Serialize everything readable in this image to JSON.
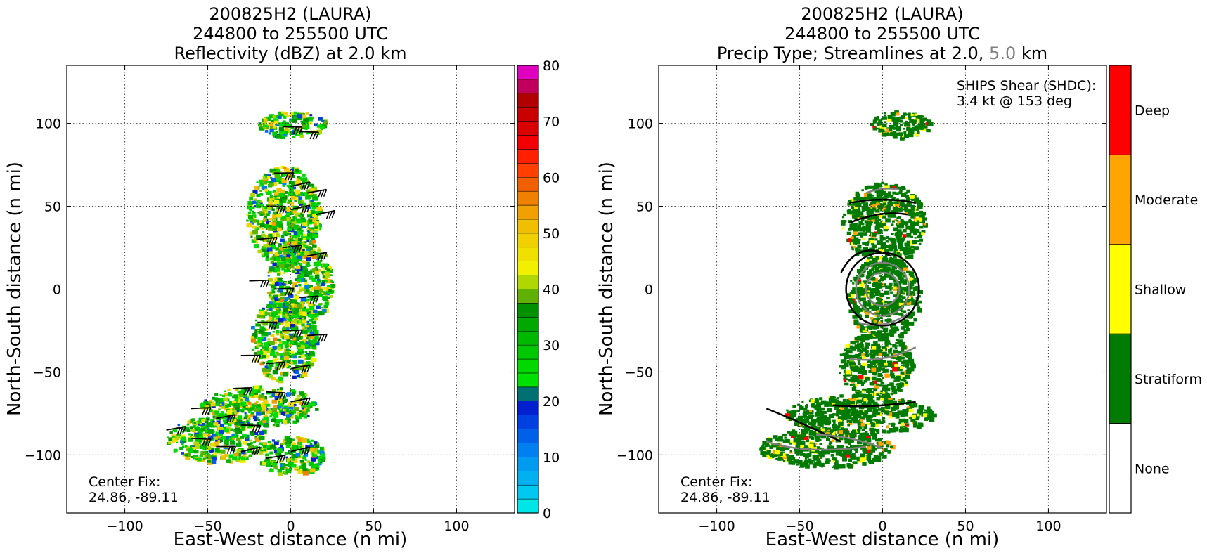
{
  "chart_data": [
    {
      "type": "heatmap",
      "title_lines": [
        "200825H2 (LAURA)",
        "244800 to 255500 UTC",
        "Reflectivity (dBZ) at 2.0 km"
      ],
      "xlabel": "East-West distance (n mi)",
      "ylabel": "North-South distance (n mi)",
      "xlim": [
        -135,
        135
      ],
      "ylim": [
        -135,
        135
      ],
      "xticks": [
        -100,
        -50,
        0,
        50,
        100
      ],
      "yticks": [
        -100,
        -50,
        0,
        50,
        100
      ],
      "tick_labels": [
        "−100",
        "−50",
        "0",
        "50",
        "100"
      ],
      "grid": true,
      "annotation": [
        "Center Fix:",
        "24.86, -89.11"
      ],
      "overlay": "wind barbs",
      "colorbar": {
        "range": [
          0,
          80
        ],
        "step": 2.5,
        "tick_values": [
          0,
          10,
          20,
          30,
          40,
          50,
          60,
          70,
          80
        ],
        "tick_labels": [
          "0",
          "10",
          "20",
          "30",
          "40",
          "50",
          "60",
          "70",
          "80"
        ],
        "colors": [
          "#00e5e5",
          "#00c8f0",
          "#00b0f0",
          "#009af0",
          "#0080f0",
          "#0060e8",
          "#0040e0",
          "#0020d0",
          "#007070",
          "#00e000",
          "#00d800",
          "#00c800",
          "#00b800",
          "#00a800",
          "#009000",
          "#60b000",
          "#b0d800",
          "#f0f000",
          "#f0e000",
          "#f0d000",
          "#f0c000",
          "#f0a000",
          "#f08000",
          "#f06000",
          "#ff4000",
          "#ff2000",
          "#f00000",
          "#d80000",
          "#c80000",
          "#b00000",
          "#c0005a",
          "#e000c0",
          "#f000f0",
          "#d040e8",
          "#a050d0",
          "#7840a0",
          "#402050",
          "#000000"
        ]
      },
      "echo_regions": [
        {
          "x": 0,
          "y": 100,
          "rx": 20,
          "ry": 8
        },
        {
          "x": -5,
          "y": 45,
          "rx": 22,
          "ry": 30
        },
        {
          "x": 5,
          "y": 5,
          "rx": 20,
          "ry": 25
        },
        {
          "x": -5,
          "y": -30,
          "rx": 20,
          "ry": 25
        },
        {
          "x": -20,
          "y": -70,
          "rx": 35,
          "ry": 12
        },
        {
          "x": -45,
          "y": -90,
          "rx": 30,
          "ry": 14
        },
        {
          "x": 0,
          "y": -100,
          "rx": 20,
          "ry": 12
        }
      ]
    },
    {
      "type": "heatmap",
      "title_lines": [
        "200825H2 (LAURA)",
        "244800 to 255500 UTC"
      ],
      "title_line3_parts": [
        "Precip Type; Streamlines at 2.0, ",
        "5.0",
        " km"
      ],
      "xlabel": "East-West distance (n mi)",
      "ylabel": "North-South distance (n mi)",
      "xlim": [
        -135,
        135
      ],
      "ylim": [
        -135,
        135
      ],
      "xticks": [
        -100,
        -50,
        0,
        50,
        100
      ],
      "yticks": [
        -100,
        -50,
        0,
        50,
        100
      ],
      "tick_labels": [
        "−100",
        "−50",
        "0",
        "50",
        "100"
      ],
      "grid": true,
      "annotation": [
        "Center Fix:",
        "24.86, -89.11"
      ],
      "shear_text": [
        "SHIPS Shear (SHDC):",
        "3.4 kt @ 153 deg"
      ],
      "overlay": "streamlines",
      "categories": [
        "None",
        "Stratiform",
        "Shallow",
        "Moderate",
        "Deep"
      ],
      "category_colors": [
        "#ffffff",
        "#007a00",
        "#ffff00",
        "#ffa500",
        "#ff0000"
      ],
      "colors": {
        "streamline_2km": "#000000",
        "streamline_5km": "#808080"
      },
      "echo_regions": [
        {
          "x": 10,
          "y": 100,
          "rx": 18,
          "ry": 8
        },
        {
          "x": 0,
          "y": 40,
          "rx": 25,
          "ry": 25
        },
        {
          "x": 0,
          "y": -5,
          "rx": 22,
          "ry": 25
        },
        {
          "x": -5,
          "y": -45,
          "rx": 22,
          "ry": 20
        },
        {
          "x": -15,
          "y": -75,
          "rx": 45,
          "ry": 12
        },
        {
          "x": -35,
          "y": -95,
          "rx": 40,
          "ry": 12
        }
      ]
    }
  ]
}
